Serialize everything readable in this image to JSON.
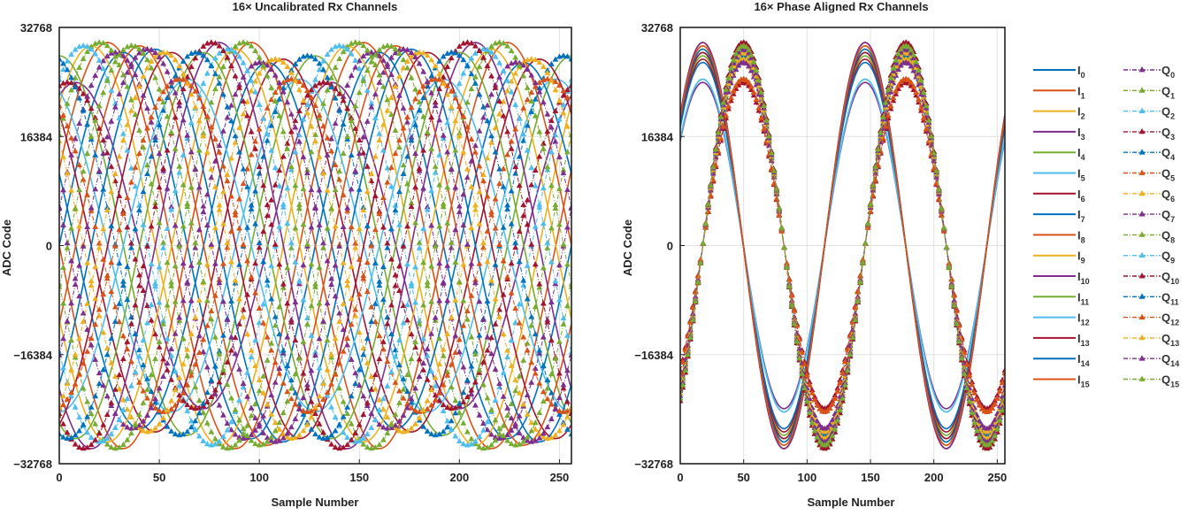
{
  "chart_data": [
    {
      "type": "line",
      "title": "16× Uncalibrated Rx Channels",
      "xlabel": "Sample Number",
      "ylabel": "ADC Code",
      "xlim": [
        0,
        256
      ],
      "ylim": [
        -32768,
        32768
      ],
      "xticks": [
        0,
        50,
        100,
        150,
        200,
        250
      ],
      "yticks": [
        -32768,
        -16384,
        0,
        16384,
        32768
      ],
      "ytick_labels": [
        "−32768",
        "−16384",
        "0",
        "16384",
        "32768"
      ],
      "grid": true,
      "period_samples": 128,
      "i_series": [
        {
          "name": "I0",
          "amplitude": 29000,
          "phase_deg": 0
        },
        {
          "name": "I1",
          "amplitude": 30500,
          "phase_deg": 22
        },
        {
          "name": "I2",
          "amplitude": 30000,
          "phase_deg": 45
        },
        {
          "name": "I3",
          "amplitude": 24500,
          "phase_deg": 67
        },
        {
          "name": "I4",
          "amplitude": 28500,
          "phase_deg": 90
        },
        {
          "name": "I5",
          "amplitude": 25000,
          "phase_deg": 112
        },
        {
          "name": "I6",
          "amplitude": 28000,
          "phase_deg": 135
        },
        {
          "name": "I7",
          "amplitude": 27500,
          "phase_deg": 157
        },
        {
          "name": "I8",
          "amplitude": 30500,
          "phase_deg": 180
        },
        {
          "name": "I9",
          "amplitude": 29500,
          "phase_deg": 202
        },
        {
          "name": "I10",
          "amplitude": 30500,
          "phase_deg": 225
        },
        {
          "name": "I11",
          "amplitude": 29000,
          "phase_deg": 247
        },
        {
          "name": "I12",
          "amplitude": 25000,
          "phase_deg": 270
        },
        {
          "name": "I13",
          "amplitude": 29000,
          "phase_deg": 292
        },
        {
          "name": "I14",
          "amplitude": 29500,
          "phase_deg": 315
        },
        {
          "name": "I15",
          "amplitude": 30000,
          "phase_deg": 337
        }
      ],
      "q_series": [
        {
          "name": "Q0",
          "amplitude": 29000,
          "phase_deg": 11
        },
        {
          "name": "Q1",
          "amplitude": 30500,
          "phase_deg": 33
        },
        {
          "name": "Q2",
          "amplitude": 30000,
          "phase_deg": 56
        },
        {
          "name": "Q3",
          "amplitude": 24500,
          "phase_deg": 78
        },
        {
          "name": "Q4",
          "amplitude": 28500,
          "phase_deg": 101
        },
        {
          "name": "Q5",
          "amplitude": 25000,
          "phase_deg": 123
        },
        {
          "name": "Q6",
          "amplitude": 28000,
          "phase_deg": 146
        },
        {
          "name": "Q7",
          "amplitude": 27500,
          "phase_deg": 168
        },
        {
          "name": "Q8",
          "amplitude": 30500,
          "phase_deg": 191
        },
        {
          "name": "Q9",
          "amplitude": 29500,
          "phase_deg": 213
        },
        {
          "name": "Q10",
          "amplitude": 30500,
          "phase_deg": 236
        },
        {
          "name": "Q11",
          "amplitude": 29000,
          "phase_deg": 258
        },
        {
          "name": "Q12",
          "amplitude": 25000,
          "phase_deg": 281
        },
        {
          "name": "Q13",
          "amplitude": 29000,
          "phase_deg": 303
        },
        {
          "name": "Q14",
          "amplitude": 29500,
          "phase_deg": 326
        },
        {
          "name": "Q15",
          "amplitude": 30000,
          "phase_deg": 348
        }
      ]
    },
    {
      "type": "line",
      "title": "16× Phase Aligned Rx Channels",
      "xlabel": "Sample Number",
      "ylabel": "ADC Code",
      "xlim": [
        0,
        256
      ],
      "ylim": [
        -32768,
        32768
      ],
      "xticks": [
        0,
        50,
        100,
        150,
        200,
        250
      ],
      "yticks": [
        -32768,
        -16384,
        0,
        16384,
        32768
      ],
      "ytick_labels": [
        "−32768",
        "−16384",
        "0",
        "16384",
        "32768"
      ],
      "grid": true,
      "period_samples": 128,
      "i_series": [
        {
          "name": "I0",
          "amplitude": 29000,
          "phase_deg": 40
        },
        {
          "name": "I1",
          "amplitude": 30500,
          "phase_deg": 40
        },
        {
          "name": "I2",
          "amplitude": 30000,
          "phase_deg": 40
        },
        {
          "name": "I3",
          "amplitude": 24500,
          "phase_deg": 40
        },
        {
          "name": "I4",
          "amplitude": 28500,
          "phase_deg": 40
        },
        {
          "name": "I5",
          "amplitude": 25000,
          "phase_deg": 40
        },
        {
          "name": "I6",
          "amplitude": 28000,
          "phase_deg": 40
        },
        {
          "name": "I7",
          "amplitude": 27500,
          "phase_deg": 40
        },
        {
          "name": "I8",
          "amplitude": 30500,
          "phase_deg": 40
        },
        {
          "name": "I9",
          "amplitude": 29500,
          "phase_deg": 40
        },
        {
          "name": "I10",
          "amplitude": 30500,
          "phase_deg": 40
        },
        {
          "name": "I11",
          "amplitude": 29000,
          "phase_deg": 40
        },
        {
          "name": "I12",
          "amplitude": 25000,
          "phase_deg": 40
        },
        {
          "name": "I13",
          "amplitude": 29000,
          "phase_deg": 40
        },
        {
          "name": "I14",
          "amplitude": 29500,
          "phase_deg": 40
        },
        {
          "name": "I15",
          "amplitude": 30000,
          "phase_deg": 40
        }
      ],
      "q_series": [
        {
          "name": "Q0",
          "amplitude": 29000,
          "phase_deg": -50
        },
        {
          "name": "Q1",
          "amplitude": 30500,
          "phase_deg": -50
        },
        {
          "name": "Q2",
          "amplitude": 30000,
          "phase_deg": -50
        },
        {
          "name": "Q3",
          "amplitude": 24500,
          "phase_deg": -50
        },
        {
          "name": "Q4",
          "amplitude": 28500,
          "phase_deg": -50
        },
        {
          "name": "Q5",
          "amplitude": 25000,
          "phase_deg": -50
        },
        {
          "name": "Q6",
          "amplitude": 28000,
          "phase_deg": -50
        },
        {
          "name": "Q7",
          "amplitude": 27500,
          "phase_deg": -50
        },
        {
          "name": "Q8",
          "amplitude": 30500,
          "phase_deg": -50
        },
        {
          "name": "Q9",
          "amplitude": 29500,
          "phase_deg": -50
        },
        {
          "name": "Q10",
          "amplitude": 30500,
          "phase_deg": -50
        },
        {
          "name": "Q11",
          "amplitude": 29000,
          "phase_deg": -50
        },
        {
          "name": "Q12",
          "amplitude": 25000,
          "phase_deg": -50
        },
        {
          "name": "Q13",
          "amplitude": 29000,
          "phase_deg": -50
        },
        {
          "name": "Q14",
          "amplitude": 29500,
          "phase_deg": -50
        },
        {
          "name": "Q15",
          "amplitude": 30000,
          "phase_deg": -50
        }
      ]
    }
  ],
  "palette": [
    "#0072BD",
    "#D95319",
    "#EDB120",
    "#7E2F8E",
    "#77AC30",
    "#4DBEEE",
    "#A2142F"
  ],
  "legend": {
    "placement": "right of second chart",
    "i_entries": [
      {
        "base": "I",
        "sub": "0"
      },
      {
        "base": "I",
        "sub": "1"
      },
      {
        "base": "I",
        "sub": "2"
      },
      {
        "base": "I",
        "sub": "3"
      },
      {
        "base": "I",
        "sub": "4"
      },
      {
        "base": "I",
        "sub": "5"
      },
      {
        "base": "I",
        "sub": "6"
      },
      {
        "base": "I",
        "sub": "7"
      },
      {
        "base": "I",
        "sub": "8"
      },
      {
        "base": "I",
        "sub": "9"
      },
      {
        "base": "I",
        "sub": "10"
      },
      {
        "base": "I",
        "sub": "11"
      },
      {
        "base": "I",
        "sub": "12"
      },
      {
        "base": "I",
        "sub": "13"
      },
      {
        "base": "I",
        "sub": "14"
      },
      {
        "base": "I",
        "sub": "15"
      }
    ],
    "q_entries": [
      {
        "base": "Q",
        "sub": "0"
      },
      {
        "base": "Q",
        "sub": "1"
      },
      {
        "base": "Q",
        "sub": "2"
      },
      {
        "base": "Q",
        "sub": "3"
      },
      {
        "base": "Q",
        "sub": "4"
      },
      {
        "base": "Q",
        "sub": "5"
      },
      {
        "base": "Q",
        "sub": "6"
      },
      {
        "base": "Q",
        "sub": "7"
      },
      {
        "base": "Q",
        "sub": "8"
      },
      {
        "base": "Q",
        "sub": "9"
      },
      {
        "base": "Q",
        "sub": "10"
      },
      {
        "base": "Q",
        "sub": "11"
      },
      {
        "base": "Q",
        "sub": "12"
      },
      {
        "base": "Q",
        "sub": "13"
      },
      {
        "base": "Q",
        "sub": "14"
      },
      {
        "base": "Q",
        "sub": "15"
      }
    ]
  }
}
